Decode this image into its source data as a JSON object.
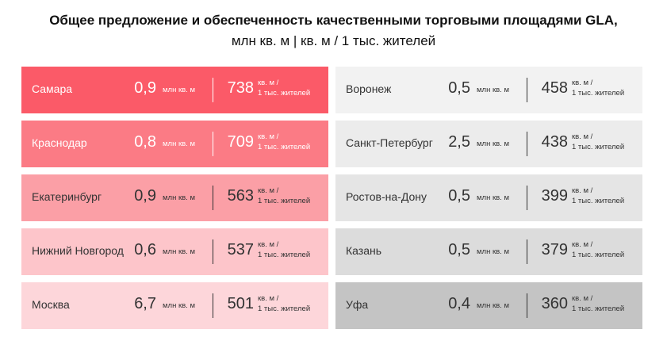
{
  "header": {
    "title_line_1": "Общее предложение и обеспеченность качественными торговыми площадями GLA,",
    "title_line_2": "млн кв. м | кв. м / 1 тыс. жителей"
  },
  "columns": [
    {
      "rows": [
        {
          "city": "Самара",
          "gla": "0,9",
          "gla_unit": "млн кв. м",
          "density": "738",
          "density_unit_1": "кв. м /",
          "density_unit_2": "1 тыс. жителей"
        },
        {
          "city": "Краснодар",
          "gla": "0,8",
          "gla_unit": "млн кв. м",
          "density": "709",
          "density_unit_1": "кв. м /",
          "density_unit_2": "1 тыс. жителей"
        },
        {
          "city": "Екатеринбург",
          "gla": "0,9",
          "gla_unit": "млн кв. м",
          "density": "563",
          "density_unit_1": "кв. м /",
          "density_unit_2": "1 тыс. жителей"
        },
        {
          "city": "Нижний Новгород",
          "gla": "0,6",
          "gla_unit": "млн кв. м",
          "density": "537",
          "density_unit_1": "кв. м /",
          "density_unit_2": "1 тыс. жителей"
        },
        {
          "city": "Москва",
          "gla": "6,7",
          "gla_unit": "млн кв. м",
          "density": "501",
          "density_unit_1": "кв. м /",
          "density_unit_2": "1 тыс. жителей"
        }
      ]
    },
    {
      "rows": [
        {
          "city": "Воронеж",
          "gla": "0,5",
          "gla_unit": "млн кв. м",
          "density": "458",
          "density_unit_1": "кв. м /",
          "density_unit_2": "1 тыс. жителей"
        },
        {
          "city": "Санкт-Петербург",
          "gla": "2,5",
          "gla_unit": "млн кв. м",
          "density": "438",
          "density_unit_1": "кв. м /",
          "density_unit_2": "1 тыс. жителей"
        },
        {
          "city": "Ростов-на-Дону",
          "gla": "0,5",
          "gla_unit": "млн кв. м",
          "density": "399",
          "density_unit_1": "кв. м /",
          "density_unit_2": "1 тыс. жителей"
        },
        {
          "city": "Казань",
          "gla": "0,5",
          "gla_unit": "млн кв. м",
          "density": "379",
          "density_unit_1": "кв. м /",
          "density_unit_2": "1 тыс. жителей"
        },
        {
          "city": "Уфа",
          "gla": "0,4",
          "gla_unit": "млн кв. м",
          "density": "360",
          "density_unit_1": "кв. м /",
          "density_unit_2": "1 тыс. жителей"
        }
      ]
    }
  ]
}
